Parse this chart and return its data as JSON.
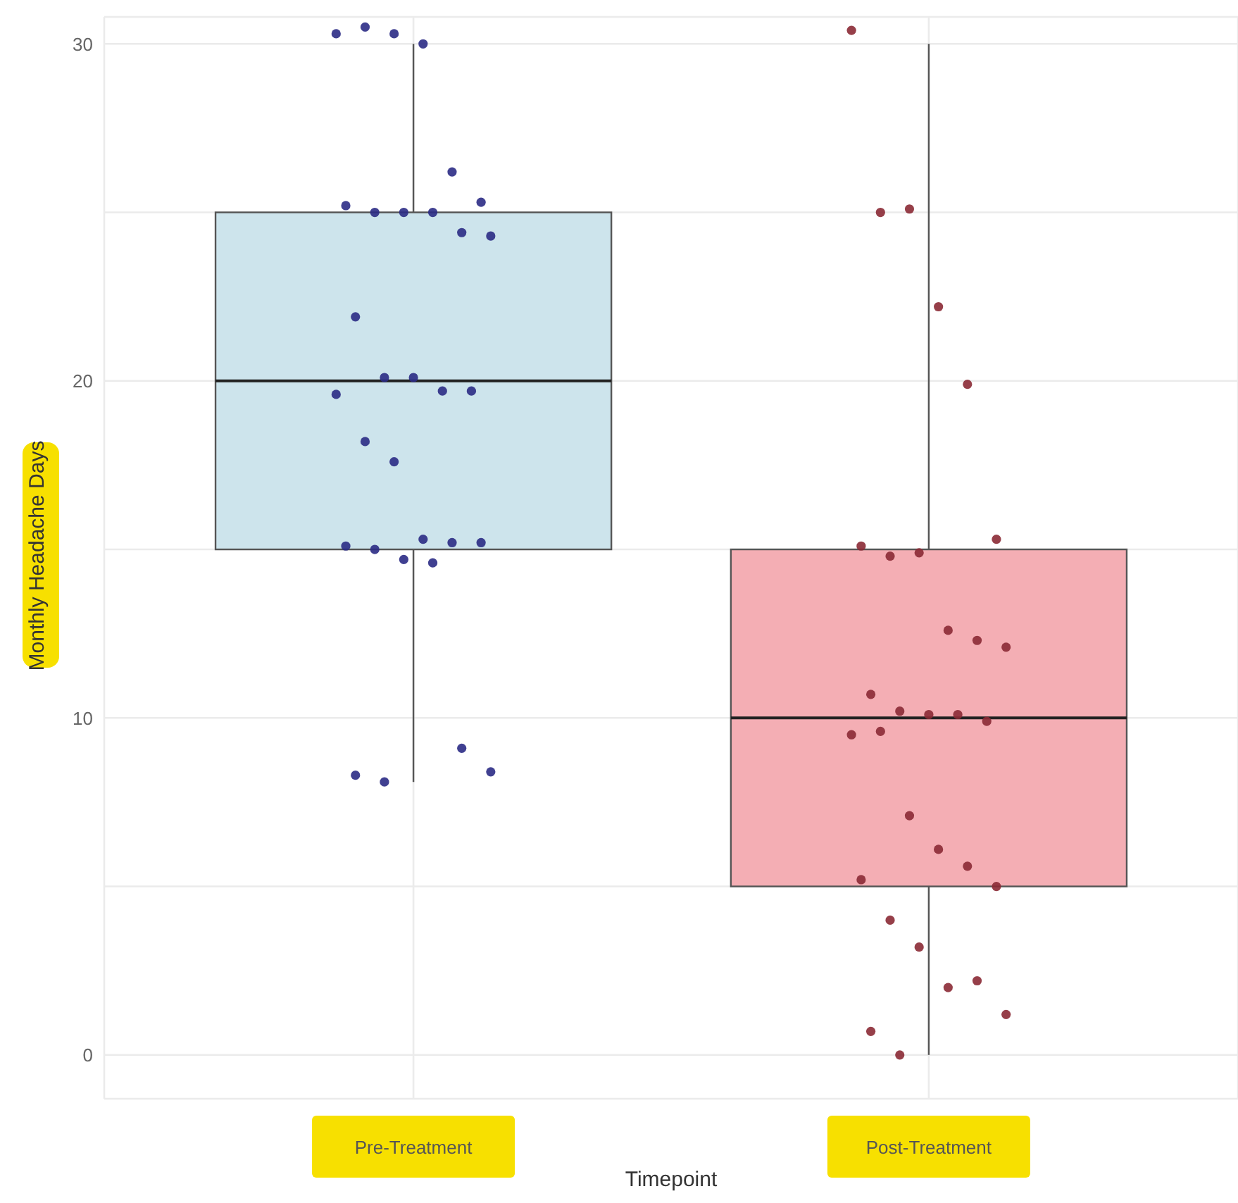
{
  "chart_data": {
    "type": "box",
    "categories": [
      "Pre-Treatment",
      "Post-Treatment"
    ],
    "xlabel": "Timepoint",
    "ylabel": "Monthly Headache Days",
    "ylim": [
      -1.3,
      30.8
    ],
    "yticks": [
      0,
      {
        "value": 5,
        "label": null
      },
      10,
      {
        "value": 15,
        "label": null
      },
      20,
      {
        "value": 25,
        "label": null
      },
      30
    ],
    "grid": true,
    "series": [
      {
        "colors": [
          "#cde4ec",
          "#f4aeb4"
        ],
        "boxes": [
          {
            "low": 8.1,
            "q1": 15,
            "median": 20,
            "q3": 25,
            "high": 30
          },
          {
            "low": 0,
            "q1": 5,
            "median": 10,
            "q3": 15,
            "high": 30
          }
        ]
      },
      {
        "type": "scatter",
        "color": "#2b2b85",
        "x": [
          "Pre-Treatment",
          "Pre-Treatment",
          "Pre-Treatment",
          "Pre-Treatment",
          "Pre-Treatment",
          "Pre-Treatment",
          "Pre-Treatment",
          "Pre-Treatment",
          "Pre-Treatment",
          "Pre-Treatment",
          "Pre-Treatment",
          "Pre-Treatment",
          "Pre-Treatment",
          "Pre-Treatment",
          "Pre-Treatment",
          "Pre-Treatment",
          "Pre-Treatment",
          "Pre-Treatment",
          "Pre-Treatment",
          "Pre-Treatment",
          "Pre-Treatment",
          "Pre-Treatment",
          "Pre-Treatment",
          "Pre-Treatment",
          "Pre-Treatment",
          "Pre-Treatment",
          "Pre-Treatment",
          "Pre-Treatment",
          "Pre-Treatment",
          "Pre-Treatment",
          "Pre-Treatment"
        ],
        "values": [
          30.3,
          30.5,
          30.3,
          30,
          26.2,
          25.3,
          25.2,
          25,
          25,
          25,
          24.4,
          24.3,
          21.9,
          20.1,
          20.1,
          19.7,
          19.7,
          19.6,
          18.2,
          17.6,
          15.3,
          15.2,
          15.2,
          15.1,
          15,
          14.7,
          14.6,
          9.1,
          8.4,
          8.3,
          8.1
        ]
      },
      {
        "type": "scatter",
        "color": "#8b2a35",
        "x": [
          "Post-Treatment",
          "Post-Treatment",
          "Post-Treatment",
          "Post-Treatment",
          "Post-Treatment",
          "Post-Treatment",
          "Post-Treatment",
          "Post-Treatment",
          "Post-Treatment",
          "Post-Treatment",
          "Post-Treatment",
          "Post-Treatment",
          "Post-Treatment",
          "Post-Treatment",
          "Post-Treatment",
          "Post-Treatment",
          "Post-Treatment",
          "Post-Treatment",
          "Post-Treatment",
          "Post-Treatment",
          "Post-Treatment",
          "Post-Treatment",
          "Post-Treatment",
          "Post-Treatment",
          "Post-Treatment",
          "Post-Treatment",
          "Post-Treatment",
          "Post-Treatment",
          "Post-Treatment",
          "Post-Treatment",
          "Post-Treatment"
        ],
        "values": [
          30.4,
          25,
          25.1,
          22.2,
          19.9,
          15.3,
          15.1,
          14.8,
          14.9,
          12.6,
          12.3,
          12.1,
          10.7,
          10.2,
          10.1,
          10.1,
          9.9,
          9.5,
          9.6,
          7.1,
          6.1,
          5.6,
          5,
          5.2,
          4,
          3.2,
          2,
          2.2,
          1.2,
          0.7,
          0
        ]
      }
    ]
  }
}
